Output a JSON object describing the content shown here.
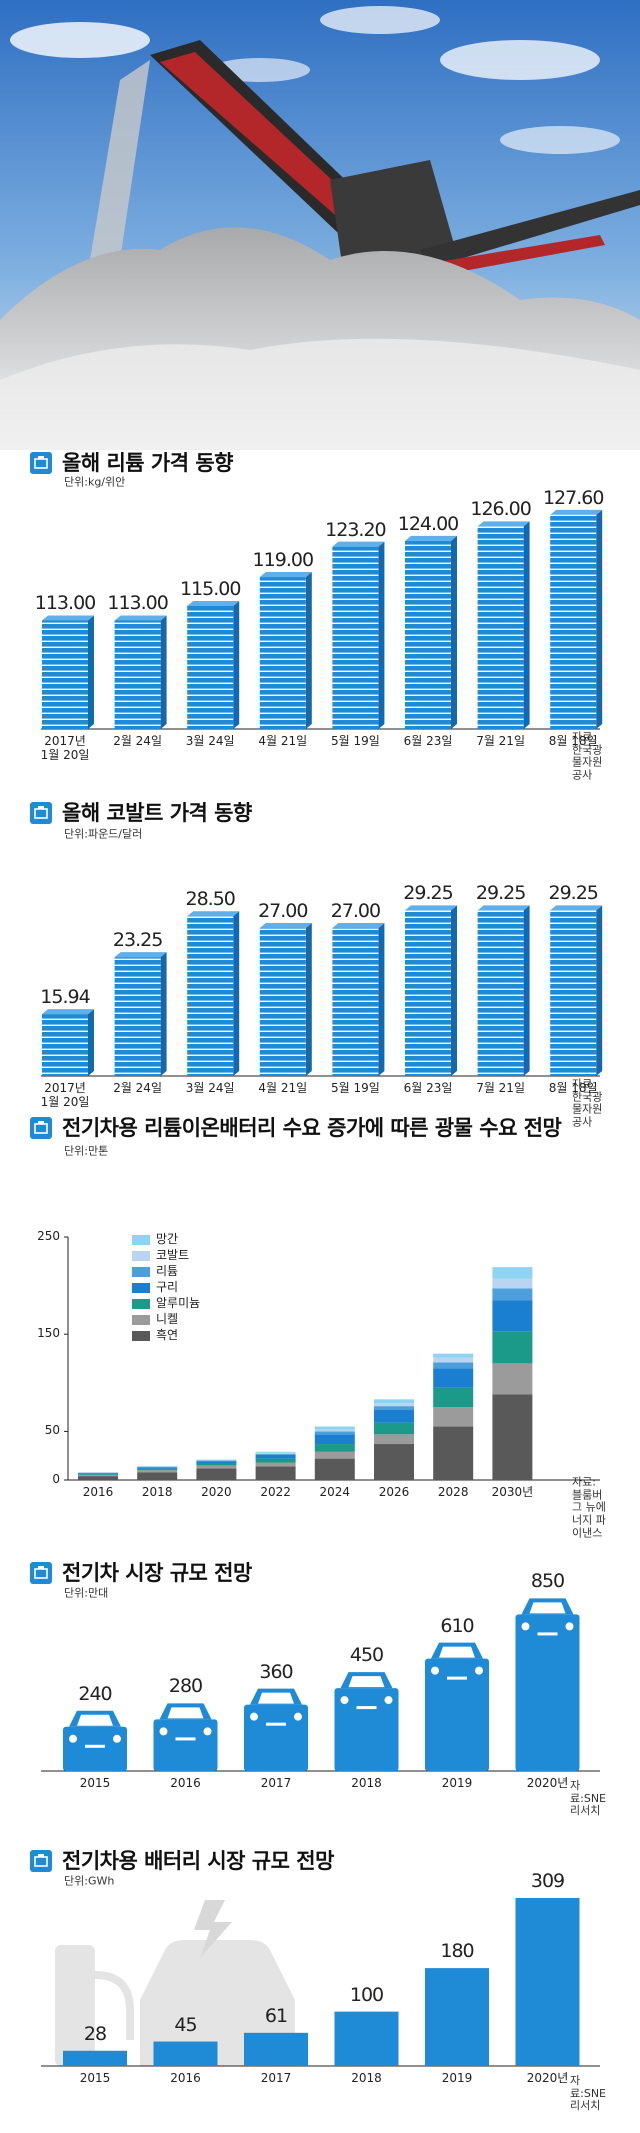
{
  "chart_data": [
    {
      "type": "bar",
      "bar_style": "books",
      "title": "올해 리튬 가격 동향",
      "unit": "단위:kg/위안",
      "source": "자료:한국광물자원공사",
      "categories": [
        "2017년\n1월 20일",
        "2월 24일",
        "3월 24일",
        "4월 21일",
        "5월 19일",
        "6월 23일",
        "7월 21일",
        "8월 18일"
      ],
      "values": [
        113,
        113,
        115,
        119,
        123.2,
        124,
        126,
        127.6
      ],
      "value_labels": [
        "113.00",
        "113.00",
        "115.00",
        "119.00",
        "123.20",
        "124.00",
        "126.00",
        "127.60"
      ],
      "color": "#1f8ad6",
      "ylim": [
        98,
        132
      ]
    },
    {
      "type": "bar",
      "bar_style": "books",
      "title": "올해 코발트 가격 동향",
      "unit": "단위:파운드/달러",
      "source": "자료:한국광물자원공사",
      "categories": [
        "2017년\n1월 20일",
        "2월 24일",
        "3월 24일",
        "4월 21일",
        "5월 19일",
        "6월 23일",
        "7월 21일",
        "8월 18일"
      ],
      "values": [
        15.94,
        23.25,
        28.5,
        27,
        27,
        29.25,
        29.25,
        29.25
      ],
      "value_labels": [
        "15.94",
        "23.25",
        "28.50",
        "27.00",
        "27.00",
        "29.25",
        "29.25",
        "29.25"
      ],
      "color": "#1f8ad6",
      "ylim": [
        8,
        32
      ]
    },
    {
      "type": "stacked_bar",
      "title": "전기차용 리튬이온배터리 수요 증가에 따른 광물 수요 전망",
      "unit": "단위:만톤",
      "source": "자료:블룸버그 뉴에너지 파이낸스",
      "categories": [
        "2016",
        "2018",
        "2020",
        "2022",
        "2024",
        "2026",
        "2028",
        "2030년"
      ],
      "series": [
        {
          "name": "흑연",
          "color": "#595959",
          "values": [
            4,
            8,
            12,
            14,
            22,
            37,
            55,
            88
          ]
        },
        {
          "name": "니켈",
          "color": "#9b9b9b",
          "values": [
            1,
            2,
            3,
            4,
            7,
            10,
            20,
            32
          ]
        },
        {
          "name": "알루미늄",
          "color": "#1b9a8a",
          "values": [
            1,
            1.5,
            2,
            4,
            8,
            12,
            20,
            33
          ]
        },
        {
          "name": "구리",
          "color": "#1a7fd0",
          "values": [
            1,
            1.5,
            2,
            4,
            10,
            13,
            20,
            32
          ]
        },
        {
          "name": "리튬",
          "color": "#4d9fdc",
          "values": [
            0.5,
            0.5,
            1,
            1,
            3,
            4,
            6,
            12
          ]
        },
        {
          "name": "코발트",
          "color": "#b9d5f2",
          "values": [
            0.3,
            0.5,
            0.5,
            1,
            2,
            3,
            5,
            10
          ]
        },
        {
          "name": "망간",
          "color": "#8fd3f2",
          "values": [
            0.2,
            0.5,
            0.5,
            1,
            3,
            4,
            4,
            12
          ]
        }
      ],
      "ylim": [
        0,
        250
      ],
      "yticks": [
        0,
        50,
        150,
        250
      ],
      "legend": "upper-left"
    },
    {
      "type": "bar",
      "bar_style": "car",
      "title": "전기차 시장 규모 전망",
      "unit": "단위:만대",
      "source": "자료:SNE리서치",
      "categories": [
        "2015",
        "2016",
        "2017",
        "2018",
        "2019",
        "2020년"
      ],
      "values": [
        240,
        280,
        360,
        450,
        610,
        850
      ],
      "color": "#1f8ad6",
      "ylim": [
        0,
        950
      ]
    },
    {
      "type": "bar",
      "title": "전기차용 배터리 시장 규모 전망",
      "unit": "단위:GWh",
      "source": "자료:SNE리서치",
      "categories": [
        "2015",
        "2016",
        "2017",
        "2018",
        "2019",
        "2020년"
      ],
      "values": [
        28,
        45,
        61,
        100,
        180,
        309
      ],
      "color": "#1f8ad6",
      "ylim": [
        0,
        320
      ]
    }
  ]
}
